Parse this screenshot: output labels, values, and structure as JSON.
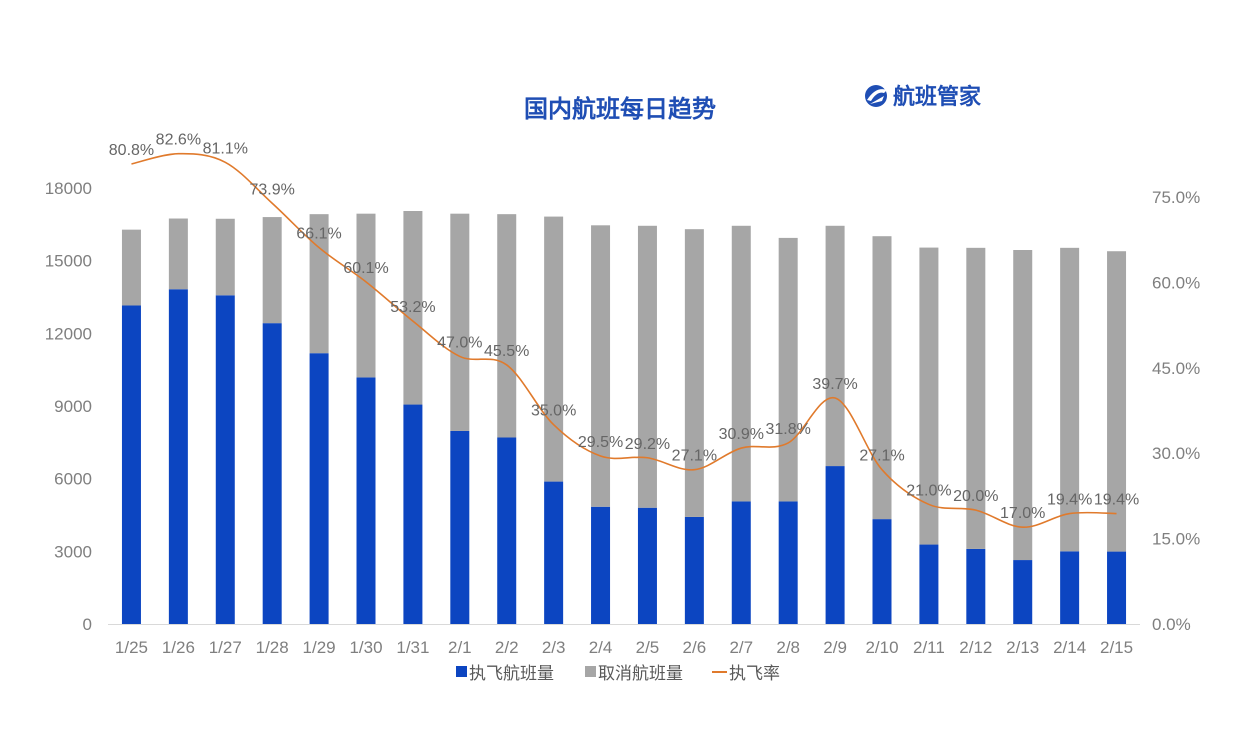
{
  "header": {
    "title": "国内航班每日趋势",
    "brand_name": "航班管家",
    "brand_icon": "globe-plane-logo-icon"
  },
  "colors": {
    "executed": "#0c45c1",
    "cancelled": "#a6a6a6",
    "rate_line": "#e07a2c",
    "title": "#1f4eb4",
    "axis_text": "#7f7f7f"
  },
  "chart_data": {
    "type": "bar",
    "stacked": true,
    "title": "国内航班每日趋势",
    "categories": [
      "1/25",
      "1/26",
      "1/27",
      "1/28",
      "1/29",
      "1/30",
      "1/31",
      "2/1",
      "2/2",
      "2/3",
      "2/4",
      "2/5",
      "2/6",
      "2/7",
      "2/8",
      "2/9",
      "2/10",
      "2/11",
      "2/12",
      "2/13",
      "2/14",
      "2/15"
    ],
    "series": [
      {
        "name": "执飞航班量",
        "type": "bar",
        "axis": "left",
        "color": "#0c45c1",
        "values": [
          13150,
          13820,
          13570,
          12420,
          11180,
          10180,
          9060,
          7970,
          7700,
          5880,
          4840,
          4800,
          4420,
          5060,
          5060,
          6520,
          4330,
          3280,
          3100,
          2640,
          3000,
          2990
        ]
      },
      {
        "name": "取消航班量",
        "type": "bar",
        "axis": "left",
        "color": "#a6a6a6",
        "values": [
          3130,
          2920,
          3160,
          4380,
          5740,
          6760,
          7990,
          8970,
          9220,
          10940,
          11620,
          11640,
          11880,
          11380,
          10880,
          9920,
          11680,
          12260,
          12430,
          12800,
          12530,
          12400
        ]
      },
      {
        "name": "执飞率",
        "type": "line",
        "axis": "right",
        "color": "#e07a2c",
        "values": [
          80.8,
          82.6,
          81.1,
          73.9,
          66.1,
          60.1,
          53.2,
          47.0,
          45.5,
          35.0,
          29.5,
          29.2,
          27.1,
          30.9,
          31.8,
          39.7,
          27.1,
          21.0,
          20.0,
          17.0,
          19.4,
          19.4
        ],
        "labels": [
          "80.8%",
          "82.6%",
          "81.1%",
          "73.9%",
          "66.1%",
          "60.1%",
          "53.2%",
          "47.0%",
          "45.5%",
          "35.0%",
          "29.5%",
          "29.2%",
          "27.1%",
          "30.9%",
          "31.8%",
          "39.7%",
          "27.1%",
          "21.0%",
          "20.0%",
          "17.0%",
          "19.4%",
          "19.4%"
        ]
      }
    ],
    "y_left": {
      "ticks": [
        "0",
        "3000",
        "6000",
        "9000",
        "12000",
        "15000",
        "18000"
      ],
      "min": 0,
      "max": 18000
    },
    "y_right": {
      "ticks": [
        "0.0%",
        "15.0%",
        "30.0%",
        "45.0%",
        "60.0%",
        "75.0%"
      ],
      "min": 0,
      "max": 75
    },
    "xlabel": "",
    "ylabel": "",
    "grid": false,
    "legend": {
      "position": "bottom",
      "items": [
        "执飞航班量",
        "取消航班量",
        "执飞率"
      ]
    }
  }
}
